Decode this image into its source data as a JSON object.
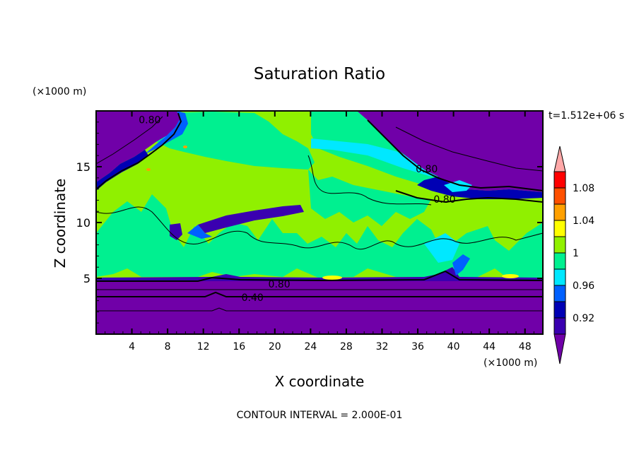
{
  "chart_data": {
    "type": "heatmap",
    "title": "Saturation Ratio",
    "xlabel": "X coordinate",
    "ylabel": "Z coordinate",
    "x_unit": "(×1000 m)",
    "y_unit": "(×1000 m)",
    "time_label": "t=1.512e+06 s",
    "footer": "CONTOUR INTERVAL = 2.000E-01",
    "xlim": [
      0,
      50
    ],
    "ylim": [
      0,
      20
    ],
    "x_ticks": [
      4,
      8,
      12,
      16,
      20,
      24,
      28,
      32,
      36,
      40,
      44,
      48
    ],
    "y_ticks": [
      5,
      10,
      15
    ],
    "colorbar": {
      "levels": [
        0.9,
        0.92,
        0.94,
        0.96,
        0.98,
        1.0,
        1.02,
        1.04,
        1.06,
        1.08,
        1.1
      ],
      "labels": [
        "0.92",
        "0.96",
        "1",
        "1.04",
        "1.08"
      ],
      "label_values": [
        0.92,
        0.96,
        1.0,
        1.04,
        1.08
      ],
      "colors": [
        "#7000A8",
        "#3A00B0",
        "#0000B4",
        "#0060FF",
        "#00E8FF",
        "#00F090",
        "#90F000",
        "#FFFF00",
        "#FFA000",
        "#FF5000",
        "#FF0000",
        "#FFA8A8"
      ],
      "extend": "both"
    },
    "contour_labels": [
      {
        "text": "0.80",
        "x": 6,
        "z": 19.2
      },
      {
        "text": "0.80",
        "x": 37,
        "z": 14.8
      },
      {
        "text": "0.80",
        "x": 39,
        "z": 12.1
      },
      {
        "text": "0.80",
        "x": 20.5,
        "z": 4.5
      },
      {
        "text": "0.40",
        "x": 17.5,
        "z": 3.3
      }
    ]
  }
}
